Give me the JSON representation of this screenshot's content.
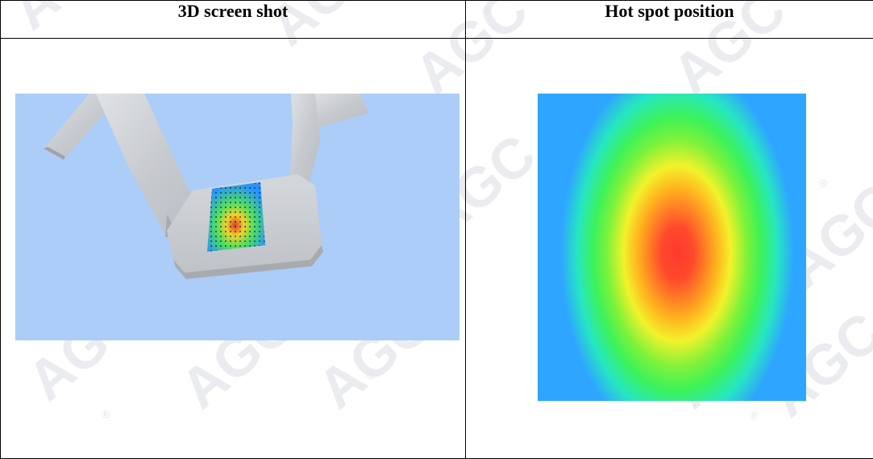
{
  "table": {
    "columns": [
      {
        "header": "3D screen shot"
      },
      {
        "header": "Hot spot position"
      }
    ]
  },
  "watermark": {
    "text": "AGC",
    "mark": "®"
  },
  "colors": {
    "scene_background": "#abcdf8",
    "part_grey": "#c9ccd0",
    "heat_low": "#2ea6ff",
    "heat_mid": "#3cf25a",
    "heat_high": "#ff3a2e"
  }
}
